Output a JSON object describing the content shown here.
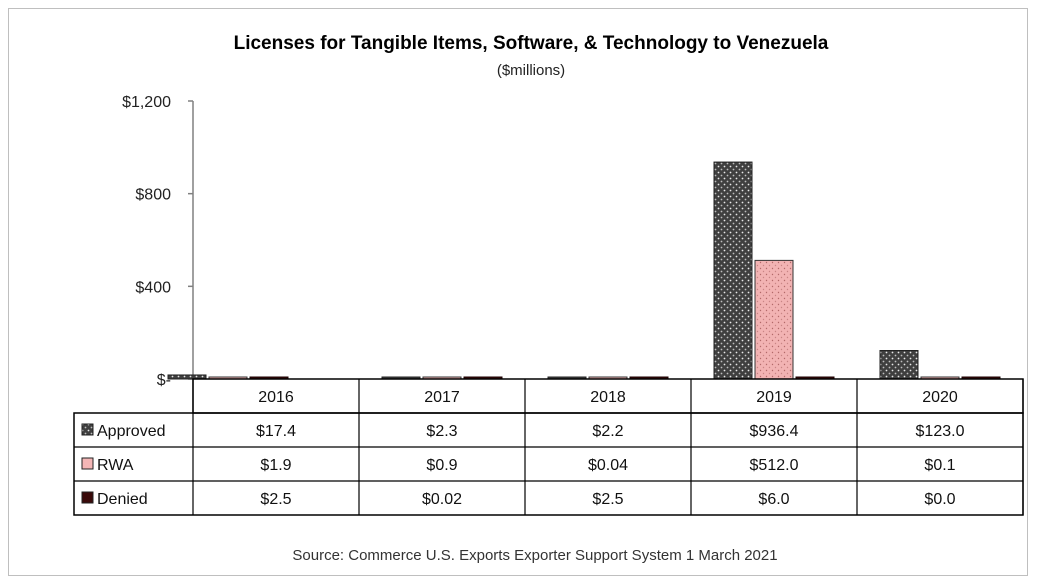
{
  "chart_data": {
    "type": "bar",
    "title": "Licenses for Tangible Items, Software, & Technology to Venezuela",
    "subtitle": "($millions)",
    "categories": [
      "2016",
      "2017",
      "2018",
      "2019",
      "2020"
    ],
    "series": [
      {
        "name": "Approved",
        "values": [
          17.4,
          2.3,
          2.2,
          936.4,
          123.0
        ],
        "labels": [
          "$17.4",
          "$2.3",
          "$2.2",
          "$936.4",
          "$123.0"
        ],
        "color": "#404040",
        "pattern": "dotted-dark"
      },
      {
        "name": "RWA",
        "values": [
          1.9,
          0.9,
          0.04,
          512.0,
          0.1
        ],
        "labels": [
          "$1.9",
          "$0.9",
          "$0.04",
          "$512.0",
          "$0.1"
        ],
        "color": "#f4b6b6",
        "pattern": "dotted-pink"
      },
      {
        "name": "Denied",
        "values": [
          2.5,
          0.02,
          2.5,
          6.0,
          0.0
        ],
        "labels": [
          "$2.5",
          "$0.02",
          "$2.5",
          "$6.0",
          "$0.0"
        ],
        "color": "#3a0a0a",
        "pattern": "solid-dark-red"
      }
    ],
    "ylim": [
      0,
      1200
    ],
    "yticks": [
      0,
      400,
      800,
      1200
    ],
    "ytick_labels": [
      "$-",
      "$400",
      "$800",
      "$1,200"
    ],
    "grid": false,
    "legend_placement": "data-table-left",
    "source": "Source: Commerce U.S. Exports Exporter Support System 1 March 2021"
  }
}
